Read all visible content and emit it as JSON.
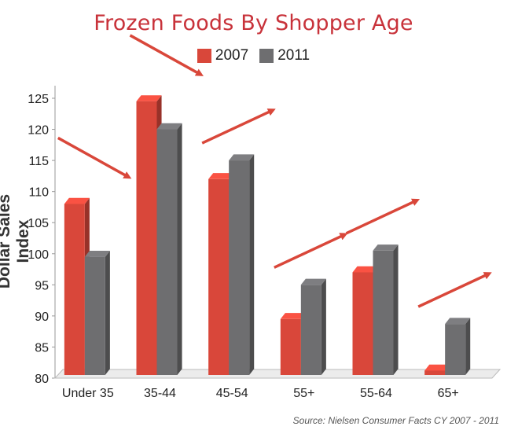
{
  "chart_data": {
    "type": "bar",
    "title": "Frozen Foods By Shopper Age",
    "xlabel": "",
    "ylabel": "Dollar Sales Index",
    "ylim": [
      80,
      125
    ],
    "yticks": [
      80,
      85,
      90,
      95,
      100,
      105,
      110,
      115,
      120,
      125
    ],
    "categories": [
      "Under 35",
      "35-44",
      "45-54",
      "55+",
      "55-64",
      "65+"
    ],
    "series": [
      {
        "name": "2007",
        "color": "#d9473a",
        "values": [
          107.5,
          124,
          111.5,
          89,
          96.5,
          80.7
        ]
      },
      {
        "name": "2011",
        "color": "#6e6e70",
        "values": [
          99,
          119.5,
          114.5,
          94.5,
          100,
          88.2
        ]
      }
    ],
    "trend_arrows": [
      "down",
      "down",
      "up",
      "up",
      "up",
      "up"
    ],
    "legend_position": "top-center",
    "source": "Source: Nielsen Consumer Facts CY 2007 - 2011"
  }
}
